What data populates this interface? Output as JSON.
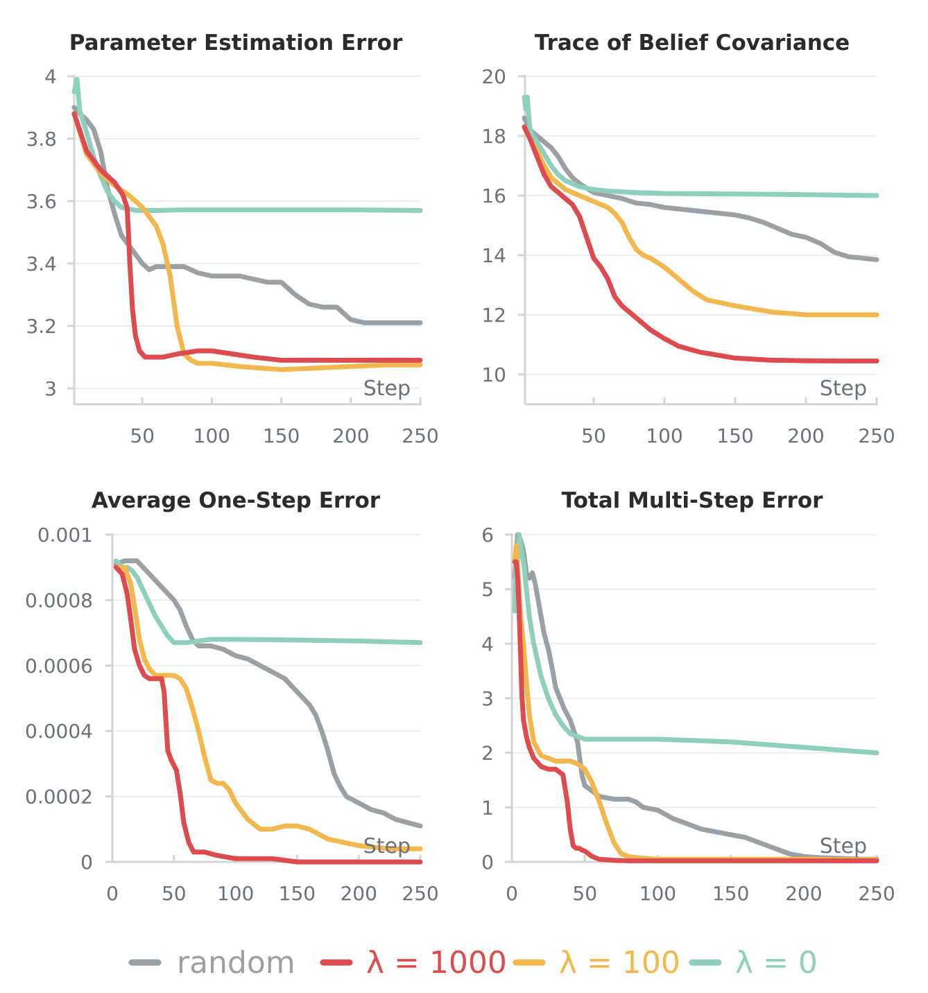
{
  "series_meta": [
    {
      "key": "random",
      "label": "random",
      "color": "#9aa0a4"
    },
    {
      "key": "l1000",
      "label": "λ = 1000",
      "color": "#dd4b4e"
    },
    {
      "key": "l100",
      "label": "λ = 100",
      "color": "#f2b84e"
    },
    {
      "key": "l0",
      "label": "λ = 0",
      "color": "#8fcfbd"
    }
  ],
  "chart_data": [
    {
      "type": "line",
      "title": "Parameter Estimation Error",
      "xlabel": "Step",
      "xlim": [
        0,
        250
      ],
      "ylim": [
        3,
        4
      ],
      "xticks": [
        50,
        100,
        150,
        200,
        250
      ],
      "yticks": [
        3,
        3.2,
        3.4,
        3.6,
        3.8,
        4
      ],
      "ytick_labels": [
        "3",
        "3.2",
        "3.4",
        "3.6",
        "3.8",
        "4"
      ],
      "series": [
        {
          "key": "random",
          "x": [
            1,
            5,
            10,
            15,
            20,
            25,
            30,
            35,
            40,
            45,
            50,
            55,
            60,
            70,
            80,
            90,
            100,
            110,
            120,
            130,
            140,
            150,
            160,
            170,
            180,
            190,
            200,
            210,
            220,
            230,
            240,
            250
          ],
          "y": [
            3.9,
            3.88,
            3.86,
            3.83,
            3.76,
            3.64,
            3.56,
            3.49,
            3.46,
            3.43,
            3.4,
            3.38,
            3.39,
            3.39,
            3.39,
            3.37,
            3.36,
            3.36,
            3.36,
            3.35,
            3.34,
            3.34,
            3.3,
            3.27,
            3.26,
            3.26,
            3.22,
            3.21,
            3.21,
            3.21,
            3.21,
            3.21
          ]
        },
        {
          "key": "l1000",
          "x": [
            1,
            10,
            20,
            30,
            36,
            39,
            40,
            41,
            43,
            45,
            48,
            52,
            58,
            65,
            75,
            90,
            100,
            115,
            130,
            150,
            175,
            200,
            225,
            250
          ],
          "y": [
            3.88,
            3.76,
            3.7,
            3.66,
            3.62,
            3.58,
            3.5,
            3.4,
            3.25,
            3.17,
            3.12,
            3.1,
            3.1,
            3.1,
            3.11,
            3.12,
            3.12,
            3.11,
            3.1,
            3.09,
            3.09,
            3.09,
            3.09,
            3.09
          ]
        },
        {
          "key": "l100",
          "x": [
            1,
            10,
            20,
            30,
            40,
            50,
            60,
            65,
            70,
            75,
            80,
            85,
            90,
            100,
            120,
            150,
            175,
            200,
            225,
            250
          ],
          "y": [
            3.88,
            3.75,
            3.69,
            3.65,
            3.62,
            3.58,
            3.52,
            3.46,
            3.36,
            3.2,
            3.11,
            3.09,
            3.08,
            3.08,
            3.07,
            3.06,
            3.065,
            3.07,
            3.075,
            3.075
          ]
        },
        {
          "key": "l0",
          "x": [
            1,
            3,
            5,
            10,
            15,
            20,
            25,
            30,
            35,
            40,
            45,
            50,
            60,
            80,
            100,
            150,
            200,
            250
          ],
          "y": [
            3.95,
            3.99,
            3.89,
            3.82,
            3.74,
            3.68,
            3.63,
            3.6,
            3.58,
            3.575,
            3.57,
            3.57,
            3.57,
            3.572,
            3.572,
            3.572,
            3.572,
            3.57
          ]
        }
      ]
    },
    {
      "type": "line",
      "title": "Trace of Belief Covariance",
      "xlabel": "Step",
      "xlim": [
        0,
        250
      ],
      "ylim": [
        10,
        20
      ],
      "xticks": [
        50,
        100,
        150,
        200,
        250
      ],
      "yticks": [
        10,
        12,
        14,
        16,
        18,
        20
      ],
      "ytick_labels": [
        "10",
        "12",
        "14",
        "16",
        "18",
        "20"
      ],
      "series": [
        {
          "key": "random",
          "x": [
            1,
            5,
            10,
            15,
            20,
            25,
            30,
            35,
            40,
            50,
            60,
            70,
            80,
            90,
            100,
            120,
            140,
            150,
            160,
            170,
            180,
            190,
            200,
            210,
            220,
            230,
            240,
            250
          ],
          "y": [
            18.6,
            18.2,
            18.0,
            17.8,
            17.6,
            17.3,
            16.9,
            16.6,
            16.4,
            16.1,
            16.0,
            15.9,
            15.75,
            15.7,
            15.6,
            15.5,
            15.4,
            15.35,
            15.25,
            15.1,
            14.9,
            14.7,
            14.6,
            14.4,
            14.1,
            13.95,
            13.9,
            13.85
          ]
        },
        {
          "key": "l1000",
          "x": [
            1,
            5,
            10,
            15,
            20,
            25,
            30,
            35,
            40,
            45,
            50,
            55,
            60,
            65,
            70,
            80,
            90,
            100,
            110,
            125,
            150,
            175,
            200,
            225,
            250
          ],
          "y": [
            18.3,
            17.9,
            17.3,
            16.7,
            16.3,
            16.1,
            15.9,
            15.7,
            15.3,
            14.6,
            13.9,
            13.6,
            13.2,
            12.6,
            12.3,
            11.9,
            11.5,
            11.2,
            10.95,
            10.75,
            10.55,
            10.48,
            10.46,
            10.45,
            10.45
          ]
        },
        {
          "key": "l100",
          "x": [
            1,
            5,
            10,
            15,
            20,
            25,
            30,
            40,
            50,
            60,
            65,
            70,
            75,
            80,
            85,
            90,
            100,
            110,
            120,
            130,
            150,
            175,
            200,
            225,
            250
          ],
          "y": [
            18.3,
            17.9,
            17.5,
            17.0,
            16.6,
            16.4,
            16.2,
            16.0,
            15.8,
            15.6,
            15.4,
            15.1,
            14.6,
            14.2,
            14.0,
            13.9,
            13.6,
            13.2,
            12.8,
            12.5,
            12.3,
            12.1,
            12.0,
            12.0,
            12.0
          ]
        },
        {
          "key": "l0",
          "x": [
            1,
            2,
            3,
            5,
            10,
            15,
            20,
            25,
            30,
            35,
            40,
            50,
            60,
            80,
            100,
            150,
            200,
            250
          ],
          "y": [
            19.3,
            18.9,
            19.3,
            18.2,
            17.8,
            17.4,
            17.0,
            16.7,
            16.5,
            16.4,
            16.3,
            16.2,
            16.15,
            16.1,
            16.07,
            16.05,
            16.03,
            16.0
          ]
        }
      ]
    },
    {
      "type": "line",
      "title": "Average One-Step Error",
      "xlabel": "Step",
      "xlim": [
        0,
        250
      ],
      "ylim": [
        0,
        0.001
      ],
      "xticks": [
        0,
        50,
        100,
        150,
        200,
        250
      ],
      "yticks": [
        0,
        0.0002,
        0.0004,
        0.0006,
        0.0008,
        0.001
      ],
      "ytick_labels": [
        "0",
        "0.0002",
        "0.0004",
        "0.0006",
        "0.0008",
        "0.001"
      ],
      "series": [
        {
          "key": "random",
          "x": [
            3,
            10,
            15,
            20,
            25,
            30,
            35,
            40,
            45,
            50,
            55,
            60,
            65,
            70,
            80,
            90,
            100,
            110,
            120,
            130,
            140,
            150,
            160,
            165,
            170,
            175,
            180,
            185,
            190,
            200,
            210,
            220,
            230,
            240,
            250
          ],
          "y": [
            0.00091,
            0.00092,
            0.00092,
            0.00092,
            0.0009,
            0.00088,
            0.00086,
            0.00084,
            0.00082,
            0.0008,
            0.00077,
            0.00072,
            0.00068,
            0.00066,
            0.00066,
            0.00065,
            0.00063,
            0.00062,
            0.0006,
            0.00058,
            0.00056,
            0.00052,
            0.00048,
            0.00045,
            0.0004,
            0.00034,
            0.00027,
            0.00023,
            0.0002,
            0.00018,
            0.00016,
            0.00015,
            0.00013,
            0.00012,
            0.00011
          ]
        },
        {
          "key": "l1000",
          "x": [
            3,
            8,
            12,
            15,
            18,
            22,
            26,
            30,
            35,
            40,
            42,
            45,
            48,
            52,
            55,
            58,
            62,
            66,
            70,
            75,
            85,
            100,
            115,
            130,
            150,
            175,
            200,
            225,
            250
          ],
          "y": [
            0.0009,
            0.00088,
            0.00082,
            0.00074,
            0.00065,
            0.0006,
            0.00057,
            0.00056,
            0.00056,
            0.00056,
            0.00052,
            0.00034,
            0.00031,
            0.00028,
            0.00021,
            0.00012,
            6e-05,
            3e-05,
            3e-05,
            3e-05,
            2e-05,
            1e-05,
            1e-05,
            1e-05,
            0.0,
            0.0,
            0.0,
            0.0,
            0.0
          ]
        },
        {
          "key": "l100",
          "x": [
            3,
            10,
            15,
            18,
            22,
            26,
            30,
            35,
            40,
            45,
            50,
            55,
            60,
            65,
            70,
            75,
            80,
            85,
            90,
            95,
            100,
            110,
            120,
            130,
            140,
            150,
            160,
            175,
            200,
            225,
            250
          ],
          "y": [
            0.0009,
            0.0009,
            0.00085,
            0.00078,
            0.00068,
            0.00062,
            0.00059,
            0.00057,
            0.00057,
            0.00057,
            0.00057,
            0.00056,
            0.00053,
            0.00047,
            0.0004,
            0.00032,
            0.00025,
            0.00024,
            0.00024,
            0.00022,
            0.00018,
            0.00013,
            0.0001,
            0.0001,
            0.00011,
            0.00011,
            0.0001,
            7e-05,
            5e-05,
            4e-05,
            4e-05
          ]
        },
        {
          "key": "l0",
          "x": [
            3,
            8,
            12,
            16,
            20,
            25,
            30,
            35,
            40,
            45,
            50,
            55,
            60,
            70,
            80,
            100,
            150,
            200,
            250
          ],
          "y": [
            0.00092,
            0.0009,
            0.0009,
            0.00089,
            0.00087,
            0.00083,
            0.00079,
            0.00075,
            0.00072,
            0.00069,
            0.00067,
            0.00067,
            0.00067,
            0.000675,
            0.00068,
            0.00068,
            0.000678,
            0.000675,
            0.00067
          ]
        }
      ]
    },
    {
      "type": "line",
      "title": "Total Multi-Step Error",
      "xlabel": "Step",
      "xlim": [
        0,
        250
      ],
      "ylim": [
        0,
        6
      ],
      "xticks": [
        0,
        50,
        100,
        150,
        200,
        250
      ],
      "yticks": [
        0,
        1,
        2,
        3,
        4,
        5,
        6
      ],
      "ytick_labels": [
        "0",
        "1",
        "2",
        "3",
        "4",
        "5",
        "6"
      ],
      "series": [
        {
          "key": "random",
          "x": [
            2,
            4,
            6,
            8,
            10,
            12,
            14,
            16,
            18,
            20,
            22,
            25,
            28,
            30,
            33,
            36,
            40,
            45,
            48,
            50,
            55,
            60,
            70,
            80,
            85,
            90,
            100,
            110,
            120,
            130,
            140,
            150,
            160,
            170,
            180,
            190,
            200,
            210,
            220,
            230,
            240,
            250
          ],
          "y": [
            5.2,
            6.0,
            5.9,
            5.7,
            5.3,
            5.2,
            5.3,
            5.1,
            4.8,
            4.5,
            4.2,
            3.9,
            3.5,
            3.2,
            3.0,
            2.8,
            2.6,
            2.2,
            1.6,
            1.4,
            1.3,
            1.2,
            1.15,
            1.15,
            1.1,
            1.0,
            0.95,
            0.8,
            0.7,
            0.6,
            0.55,
            0.5,
            0.45,
            0.35,
            0.25,
            0.15,
            0.1,
            0.08,
            0.07,
            0.06,
            0.05,
            0.05
          ]
        },
        {
          "key": "l1000",
          "x": [
            2,
            3,
            4,
            5,
            6,
            7,
            8,
            10,
            12,
            15,
            20,
            25,
            30,
            35,
            38,
            40,
            42,
            44,
            46,
            48,
            50,
            55,
            60,
            70,
            80,
            100,
            150,
            200,
            250
          ],
          "y": [
            5.5,
            5.5,
            5.2,
            4.6,
            3.8,
            3.0,
            2.6,
            2.3,
            2.1,
            1.9,
            1.75,
            1.7,
            1.7,
            1.6,
            1.1,
            0.6,
            0.3,
            0.25,
            0.25,
            0.22,
            0.2,
            0.1,
            0.05,
            0.03,
            0.02,
            0.02,
            0.02,
            0.02,
            0.02
          ]
        },
        {
          "key": "l100",
          "x": [
            2,
            3,
            4,
            5,
            6,
            8,
            10,
            12,
            15,
            20,
            25,
            30,
            35,
            40,
            45,
            50,
            55,
            60,
            65,
            70,
            75,
            80,
            85,
            100,
            150,
            200,
            250
          ],
          "y": [
            5.5,
            5.8,
            5.4,
            5.0,
            4.5,
            4.0,
            3.3,
            2.7,
            2.2,
            1.95,
            1.9,
            1.85,
            1.85,
            1.85,
            1.8,
            1.7,
            1.45,
            1.1,
            0.7,
            0.35,
            0.15,
            0.1,
            0.08,
            0.05,
            0.05,
            0.05,
            0.04
          ]
        },
        {
          "key": "l0",
          "x": [
            2,
            3,
            4,
            5,
            6,
            8,
            10,
            12,
            15,
            20,
            25,
            30,
            35,
            40,
            45,
            50,
            60,
            70,
            80,
            100,
            150,
            200,
            250
          ],
          "y": [
            4.6,
            5.8,
            5.5,
            6.0,
            5.8,
            5.5,
            5.0,
            4.5,
            4.0,
            3.4,
            3.0,
            2.7,
            2.5,
            2.35,
            2.3,
            2.25,
            2.25,
            2.25,
            2.25,
            2.25,
            2.2,
            2.1,
            2.0
          ]
        }
      ]
    }
  ]
}
